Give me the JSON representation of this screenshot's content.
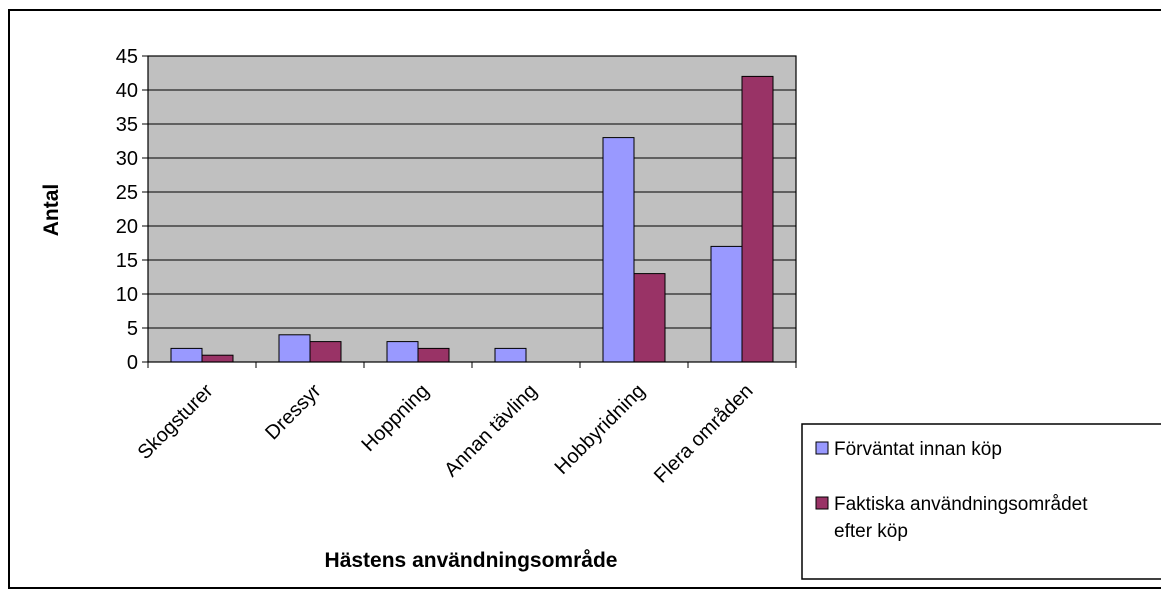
{
  "chart_data": {
    "type": "bar",
    "categories": [
      "Skogsturer",
      "Dressyr",
      "Hoppning",
      "Annan tävling",
      "Hobbyridning",
      "Flera områden"
    ],
    "series": [
      {
        "name": "Förväntat innan köp",
        "values": [
          2,
          4,
          3,
          2,
          33,
          17
        ],
        "color": "#9999ff"
      },
      {
        "name": "Faktiska användningsområdet efter köp",
        "values": [
          1,
          3,
          2,
          0,
          13,
          42
        ],
        "color": "#993366"
      }
    ],
    "xlabel": "Hästens användningsområde",
    "ylabel": "Antal",
    "ylim": [
      0,
      45
    ],
    "yticks": [
      0,
      5,
      10,
      15,
      20,
      25,
      30,
      35,
      40,
      45
    ],
    "grid": true,
    "plot_background": "#c0c0c0",
    "legend_position": "right"
  }
}
